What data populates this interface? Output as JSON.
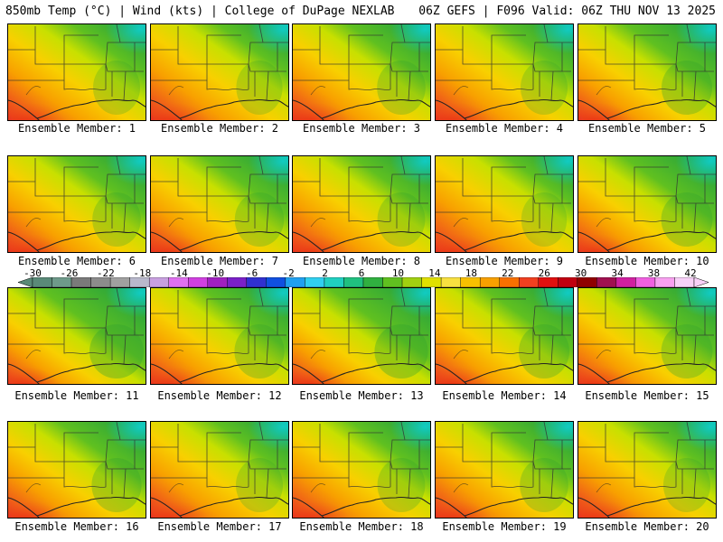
{
  "header": {
    "left": "850mb Temp (°C) | Wind (kts) | College of DuPage NEXLAB",
    "right": "06Z GEFS | F096 Valid: 06Z THU NOV 13 2025"
  },
  "members": [
    {
      "label": "Ensemble Member: 1",
      "warmth": 0.7
    },
    {
      "label": "Ensemble Member: 2",
      "warmth": 0.72
    },
    {
      "label": "Ensemble Member: 3",
      "warmth": 0.66
    },
    {
      "label": "Ensemble Member: 4",
      "warmth": 0.7
    },
    {
      "label": "Ensemble Member: 5",
      "warmth": 0.6
    },
    {
      "label": "Ensemble Member: 6",
      "warmth": 0.66
    },
    {
      "label": "Ensemble Member: 7",
      "warmth": 0.64
    },
    {
      "label": "Ensemble Member: 8",
      "warmth": 0.68
    },
    {
      "label": "Ensemble Member: 9",
      "warmth": 0.74
    },
    {
      "label": "Ensemble Member: 10",
      "warmth": 0.58
    },
    {
      "label": "Ensemble Member: 11",
      "warmth": 0.5
    },
    {
      "label": "Ensemble Member: 12",
      "warmth": 0.62
    },
    {
      "label": "Ensemble Member: 13",
      "warmth": 0.52
    },
    {
      "label": "Ensemble Member: 14",
      "warmth": 0.6
    },
    {
      "label": "Ensemble Member: 15",
      "warmth": 0.58
    },
    {
      "label": "Ensemble Member: 16",
      "warmth": 0.62
    },
    {
      "label": "Ensemble Member: 17",
      "warmth": 0.7
    },
    {
      "label": "Ensemble Member: 18",
      "warmth": 0.68
    },
    {
      "label": "Ensemble Member: 19",
      "warmth": 0.66
    },
    {
      "label": "Ensemble Member: 20",
      "warmth": 0.7
    }
  ],
  "colorbar": {
    "ticks": [
      "-30",
      "-26",
      "-22",
      "-18",
      "-14",
      "-10",
      "-6",
      "-2",
      "2",
      "6",
      "10",
      "14",
      "18",
      "22",
      "26",
      "30",
      "34",
      "38",
      "42"
    ],
    "colors": [
      "#5a8a78",
      "#6e9a8a",
      "#7a7a7a",
      "#8c8c8c",
      "#a0a0a0",
      "#b8b8cc",
      "#c8a0e0",
      "#e070f0",
      "#d040e0",
      "#a020c0",
      "#7a20c8",
      "#3030d0",
      "#1050e0",
      "#20a0f0",
      "#30d0f0",
      "#20d0c0",
      "#20c080",
      "#30b040",
      "#60c020",
      "#a0d010",
      "#e0e000",
      "#f8e040",
      "#f8c000",
      "#f8a000",
      "#f87000",
      "#f04020",
      "#e01010",
      "#c00010",
      "#900000",
      "#a01050",
      "#d020a0",
      "#f060e0",
      "#f8a0f0",
      "#f8d0f8"
    ]
  }
}
